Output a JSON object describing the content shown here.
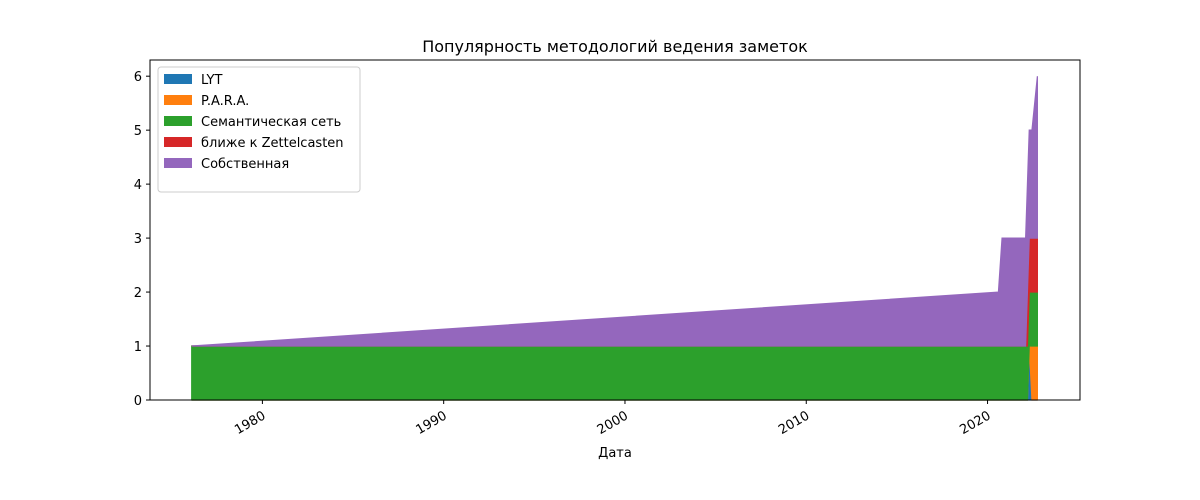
{
  "chart_data": {
    "type": "stackplot",
    "title": "Популярность методологий ведения заметок",
    "x_label": "Дата",
    "x": [
      1976.1,
      2020.6,
      2020.8,
      2022.1,
      2022.2,
      2022.3,
      2022.45,
      2022.75
    ],
    "series": [
      {
        "name": "LYT",
        "color": "#1f77b4",
        "values": [
          0,
          0,
          0,
          0,
          0,
          1,
          0,
          0
        ]
      },
      {
        "name": "P.A.R.A.",
        "color": "#ff7f0e",
        "values": [
          0,
          0,
          0,
          0,
          0,
          0,
          1,
          1
        ]
      },
      {
        "name": "Семантическая сеть",
        "color": "#2ca02c",
        "values": [
          1,
          1,
          1,
          1,
          1,
          1,
          1,
          1
        ]
      },
      {
        "name": "ближе к Zettelcasten",
        "color": "#d62728",
        "values": [
          0,
          0,
          0,
          0,
          1,
          1,
          1,
          1
        ]
      },
      {
        "name": "Собственная",
        "color": "#9467bd",
        "values": [
          0,
          1,
          2,
          2,
          2,
          2,
          2,
          3
        ]
      }
    ],
    "xlim": [
      1973.8,
      2025.1
    ],
    "xticks": [
      1980,
      1990,
      2000,
      2010,
      2020
    ],
    "ylim": [
      0,
      6.3
    ],
    "yticks": [
      0,
      1,
      2,
      3,
      4,
      5,
      6
    ],
    "legend": "upper left"
  }
}
